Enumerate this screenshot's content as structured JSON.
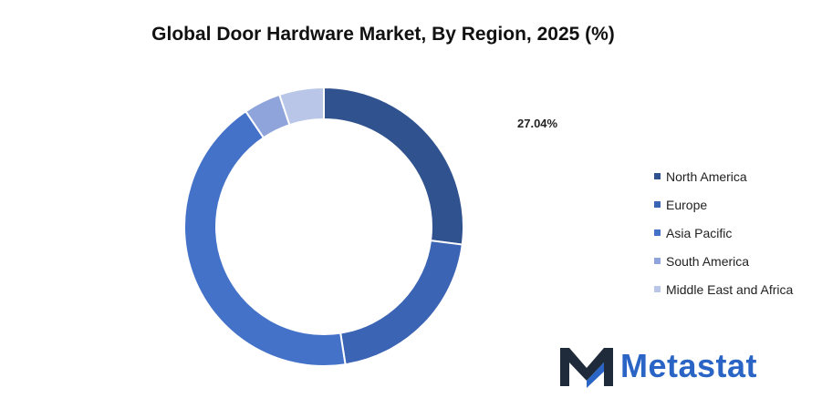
{
  "chart_data": {
    "type": "pie",
    "title": "Global Door Hardware Market, By Region, 2025 (%)",
    "categories": [
      "North America",
      "Europe",
      "Asia Pacific",
      "South America",
      "Middle East and Africa"
    ],
    "values": [
      27.04,
      20.5,
      43.0,
      4.3,
      5.16
    ],
    "colors": [
      "#30528f",
      "#3c64b4",
      "#4472c9",
      "#8ea4da",
      "#b9c6e8"
    ],
    "data_labels": [
      "27.04%"
    ],
    "legend_position": "right",
    "donut": true
  },
  "brand": {
    "name": "Metastat",
    "icon": "metastat-m-logo-icon",
    "color": "#2a64c5"
  }
}
